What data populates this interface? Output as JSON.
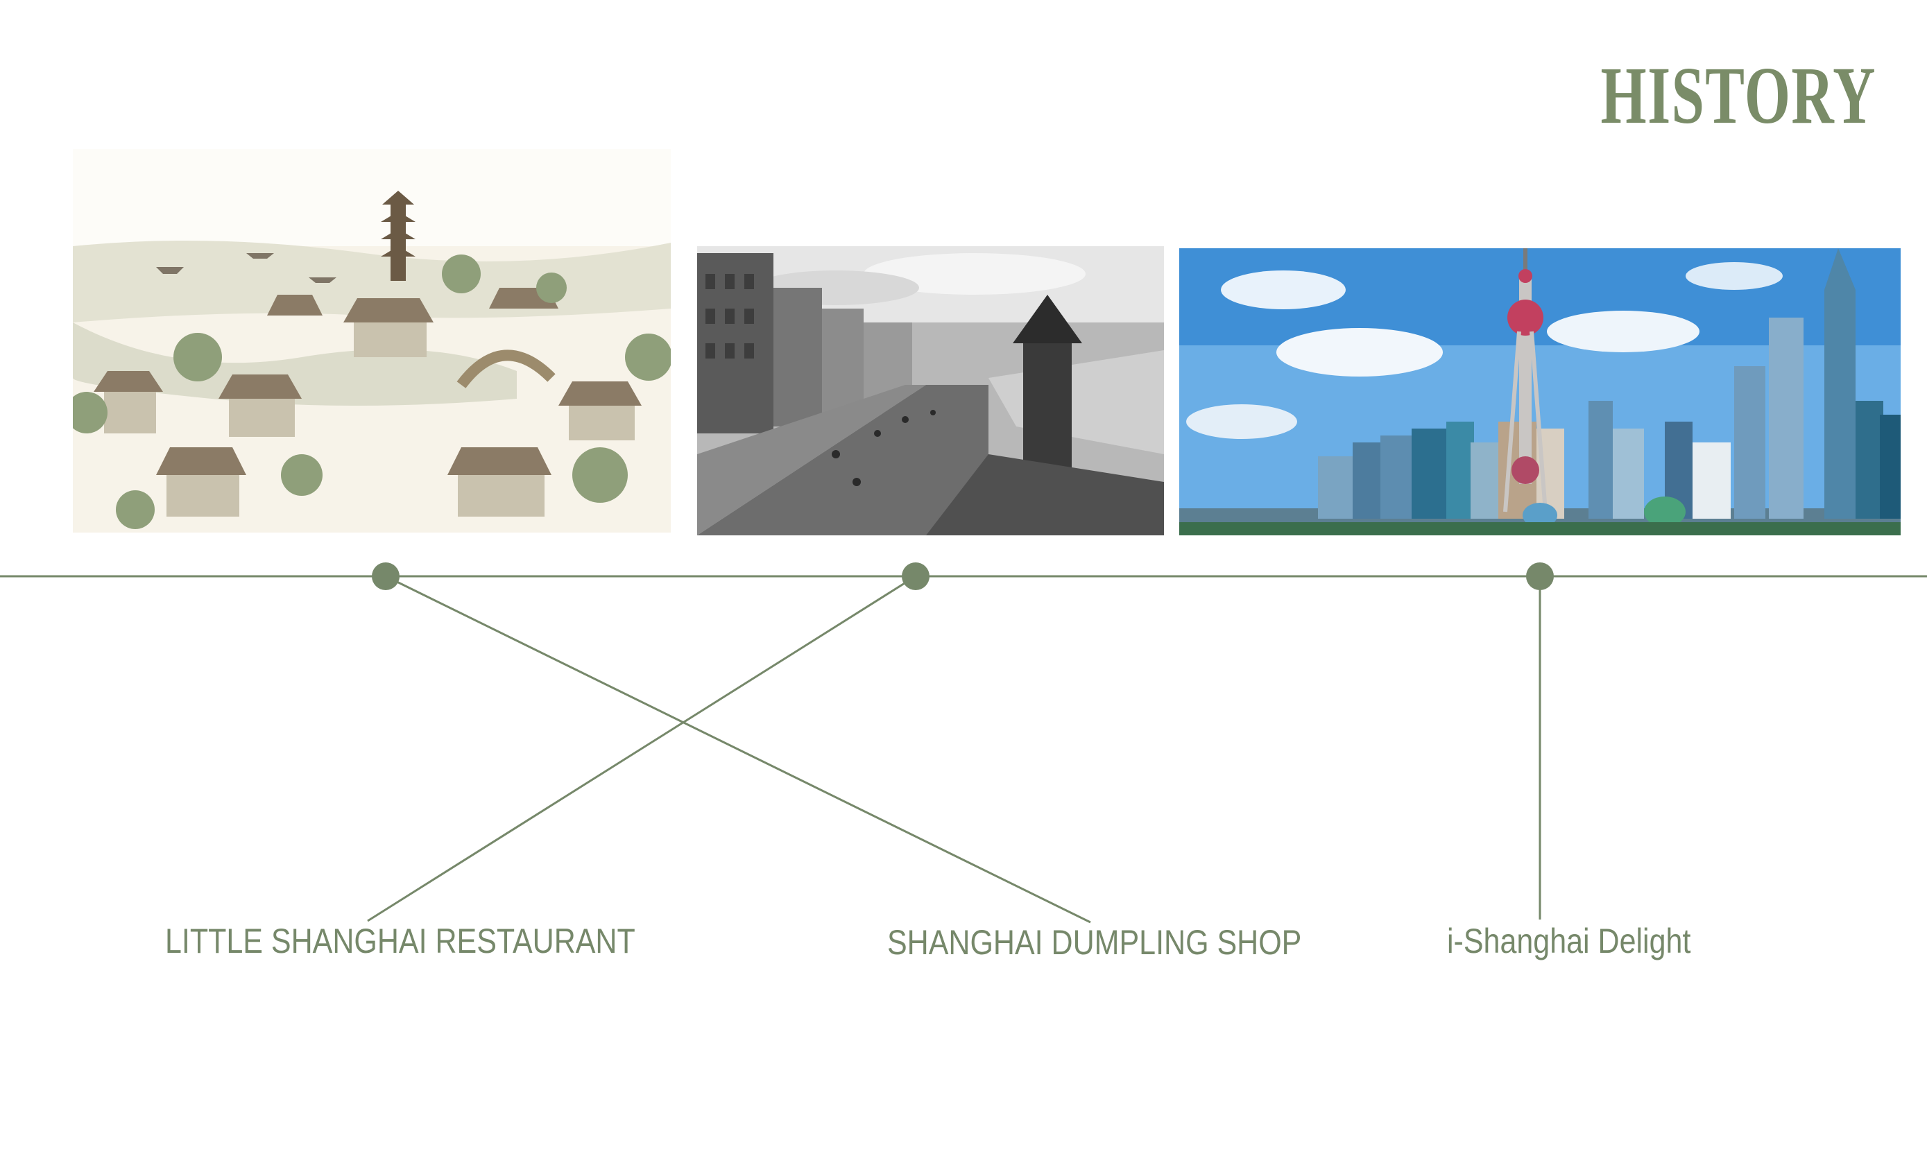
{
  "page": {
    "title": "HISTORY"
  },
  "timeline": {
    "milestones": [
      {
        "label": "LITTLE SHANGHAI RESTAURANT",
        "image": "ink painting of old Shanghai river town"
      },
      {
        "label": "SHANGHAI DUMPLING SHOP",
        "image": "black-and-white photo of the Bund"
      },
      {
        "label": "i-Shanghai Delight",
        "image": "modern Pudong skyline with Oriental Pearl Tower"
      }
    ]
  },
  "colors": {
    "accent": "#7a8c68",
    "line": "#76886a"
  }
}
